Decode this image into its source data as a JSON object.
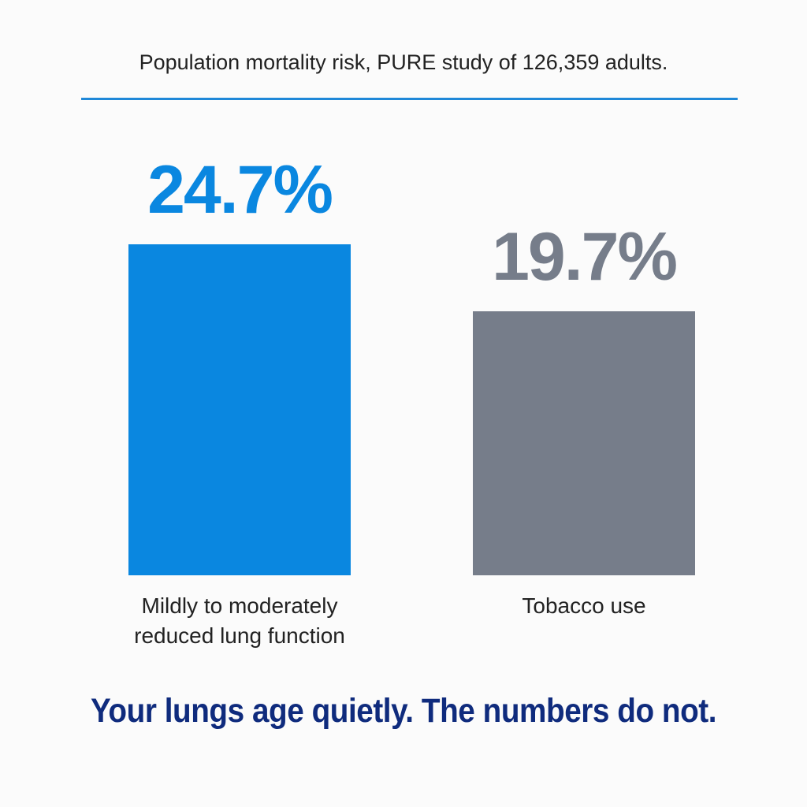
{
  "chart_data": {
    "type": "bar",
    "title": "Population mortality risk, PURE study of 126,359 adults.",
    "categories": [
      "Mildly to moderately reduced lung function",
      "Tobacco use"
    ],
    "values": [
      24.7,
      19.7
    ],
    "value_labels": [
      "24.7%",
      "19.7%"
    ],
    "colors": [
      "#0a87e0",
      "#767d8a"
    ],
    "annotation": "Your lungs age quietly. The numbers do not."
  }
}
